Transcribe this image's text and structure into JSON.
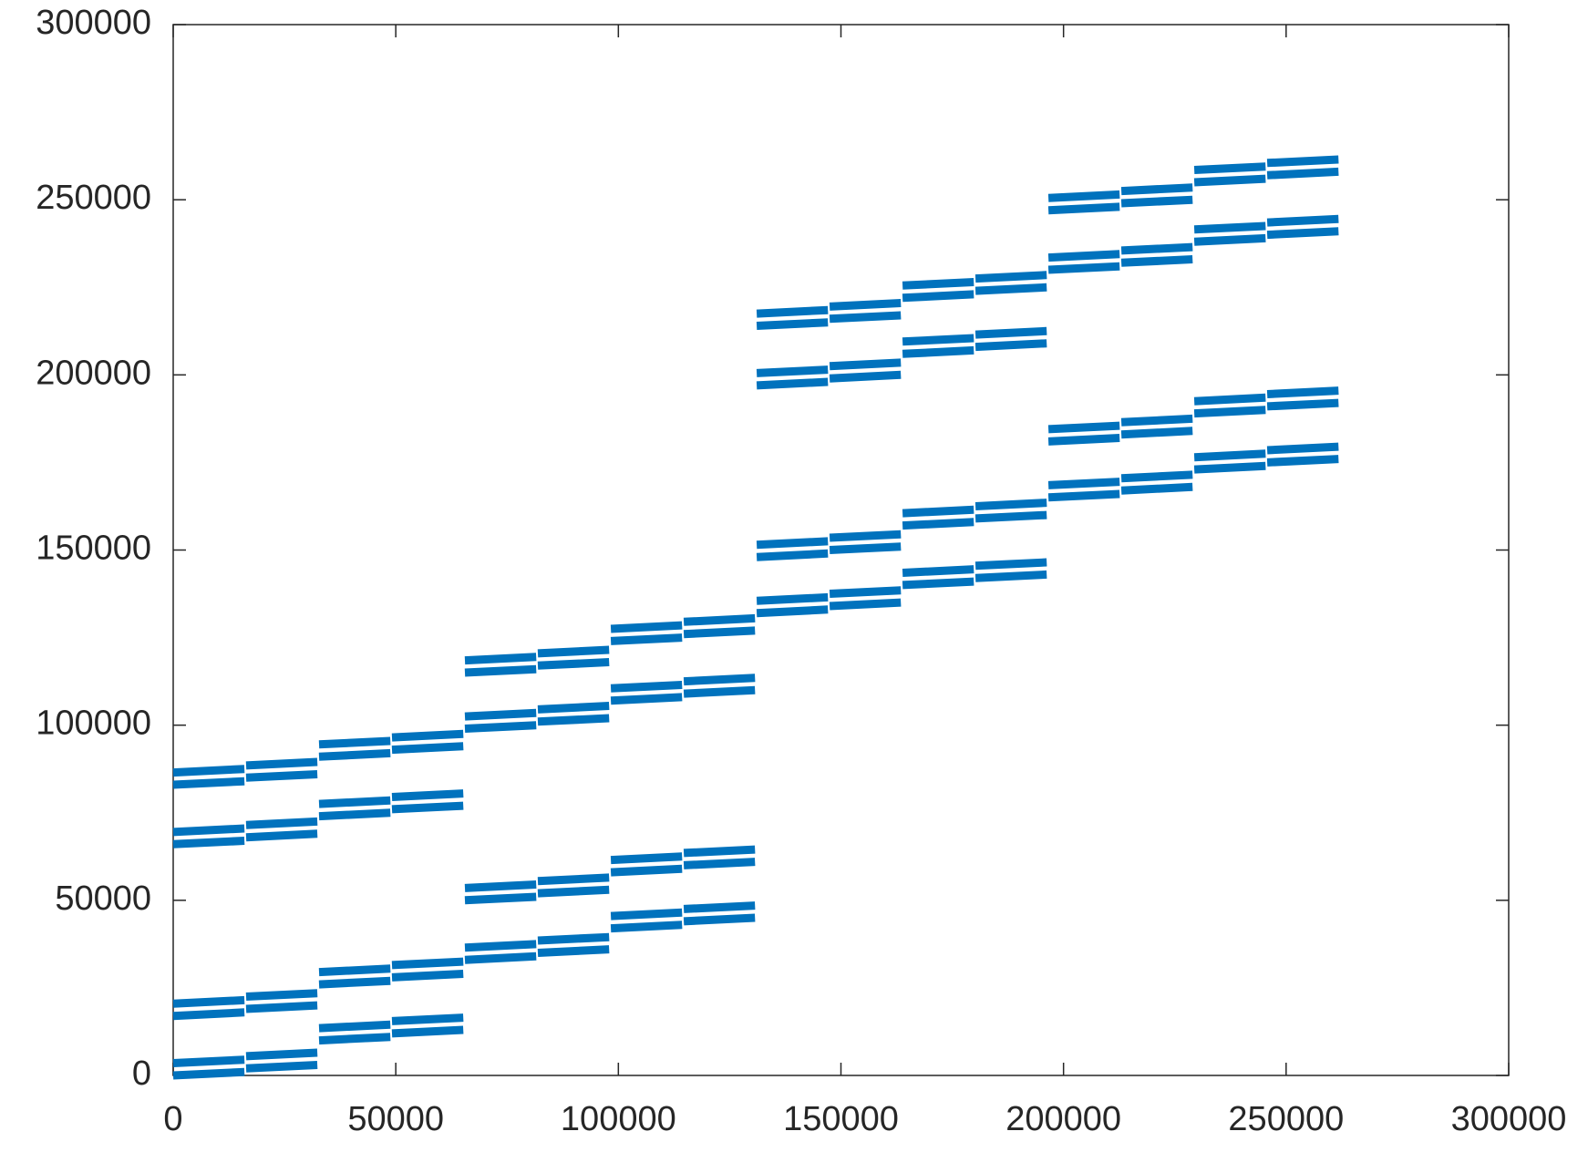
{
  "chart_data": {
    "type": "line",
    "color": "#0072bd",
    "xlim": [
      0,
      300000
    ],
    "ylim": [
      0,
      300000
    ],
    "xticks": [
      0,
      50000,
      100000,
      150000,
      200000,
      250000,
      300000
    ],
    "yticks": [
      0,
      50000,
      100000,
      150000,
      200000,
      250000,
      300000
    ],
    "x": [
      0,
      16000,
      null,
      16384,
      32384,
      null,
      32768,
      48768,
      null,
      49152,
      65152,
      null,
      65536,
      81536,
      null,
      81920,
      97920,
      null,
      98304,
      114304,
      null,
      114688,
      130688,
      null,
      131072,
      147072,
      null,
      147456,
      163456,
      null,
      163840,
      179840,
      null,
      180224,
      196224,
      null,
      196608,
      212608,
      null,
      212992,
      228992,
      null,
      229376,
      245376,
      null,
      245760,
      261760
    ],
    "series": [
      {
        "values": [
          0,
          1000,
          null,
          2000,
          3000,
          null,
          10000,
          11000,
          null,
          12000,
          13000,
          null,
          33000,
          34000,
          null,
          35000,
          36000,
          null,
          42000,
          43000,
          null,
          44000,
          45000,
          null,
          132000,
          133000,
          null,
          134000,
          135000,
          null,
          140000,
          141000,
          null,
          142000,
          143000,
          null,
          165000,
          166000,
          null,
          167000,
          168000,
          null,
          173000,
          174000,
          null,
          175000,
          176000
        ]
      },
      {
        "values": [
          3500,
          4500,
          null,
          5500,
          6500,
          null,
          13500,
          14500,
          null,
          15500,
          16500,
          null,
          36500,
          37500,
          null,
          38500,
          39500,
          null,
          45500,
          46500,
          null,
          47500,
          48500,
          null,
          135500,
          136500,
          null,
          137500,
          138500,
          null,
          143500,
          144500,
          null,
          145500,
          146500,
          null,
          168500,
          169500,
          null,
          170500,
          171500,
          null,
          176500,
          177500,
          null,
          178500,
          179500
        ]
      },
      {
        "values": [
          17000,
          18000,
          null,
          19000,
          20000,
          null,
          26000,
          27000,
          null,
          28000,
          29000,
          null,
          50000,
          51000,
          null,
          52000,
          53000,
          null,
          58000,
          59000,
          null,
          60000,
          61000,
          null,
          148000,
          149000,
          null,
          150000,
          151000,
          null,
          157000,
          158000,
          null,
          159000,
          160000,
          null,
          181000,
          182000,
          null,
          183000,
          184000,
          null,
          189000,
          190000,
          null,
          191000,
          192000
        ]
      },
      {
        "values": [
          20500,
          21500,
          null,
          22500,
          23500,
          null,
          29500,
          30500,
          null,
          31500,
          32500,
          null,
          53500,
          54500,
          null,
          55500,
          56500,
          null,
          61500,
          62500,
          null,
          63500,
          64500,
          null,
          151500,
          152500,
          null,
          153500,
          154500,
          null,
          160500,
          161500,
          null,
          162500,
          163500,
          null,
          184500,
          185500,
          null,
          186500,
          187500,
          null,
          192500,
          193500,
          null,
          194500,
          195500
        ]
      },
      {
        "values": [
          66000,
          67000,
          null,
          68000,
          69000,
          null,
          74000,
          75000,
          null,
          76000,
          77000,
          null,
          99000,
          100000,
          null,
          101000,
          102000,
          null,
          107000,
          108000,
          null,
          109000,
          110000,
          null,
          197000,
          198000,
          null,
          199000,
          200000,
          null,
          206000,
          207000,
          null,
          208000,
          209000,
          null,
          230000,
          231000,
          null,
          232000,
          233000,
          null,
          238000,
          239000,
          null,
          240000,
          241000
        ]
      },
      {
        "values": [
          69500,
          70500,
          null,
          71500,
          72500,
          null,
          77500,
          78500,
          null,
          79500,
          80500,
          null,
          102500,
          103500,
          null,
          104500,
          105500,
          null,
          110500,
          111500,
          null,
          112500,
          113500,
          null,
          200500,
          201500,
          null,
          202500,
          203500,
          null,
          209500,
          210500,
          null,
          211500,
          212500,
          null,
          233500,
          234500,
          null,
          235500,
          236500,
          null,
          241500,
          242500,
          null,
          243500,
          244500
        ]
      },
      {
        "values": [
          83000,
          84000,
          null,
          85000,
          86000,
          null,
          91000,
          92000,
          null,
          93000,
          94000,
          null,
          115000,
          116000,
          null,
          117000,
          118000,
          null,
          124000,
          125000,
          null,
          126000,
          127000,
          null,
          214000,
          215000,
          null,
          216000,
          217000,
          null,
          222000,
          223000,
          null,
          224000,
          225000,
          null,
          247000,
          248000,
          null,
          249000,
          250000,
          null,
          255000,
          256000,
          null,
          257000,
          258000
        ]
      },
      {
        "values": [
          86500,
          87500,
          null,
          88500,
          89500,
          null,
          94500,
          95500,
          null,
          96500,
          97500,
          null,
          118500,
          119500,
          null,
          120500,
          121500,
          null,
          127500,
          128500,
          null,
          129500,
          130500,
          null,
          217500,
          218500,
          null,
          219500,
          220500,
          null,
          225500,
          226500,
          null,
          227500,
          228500,
          null,
          250500,
          251500,
          null,
          252500,
          253500,
          null,
          258500,
          259500,
          null,
          260500,
          261500
        ]
      }
    ]
  }
}
